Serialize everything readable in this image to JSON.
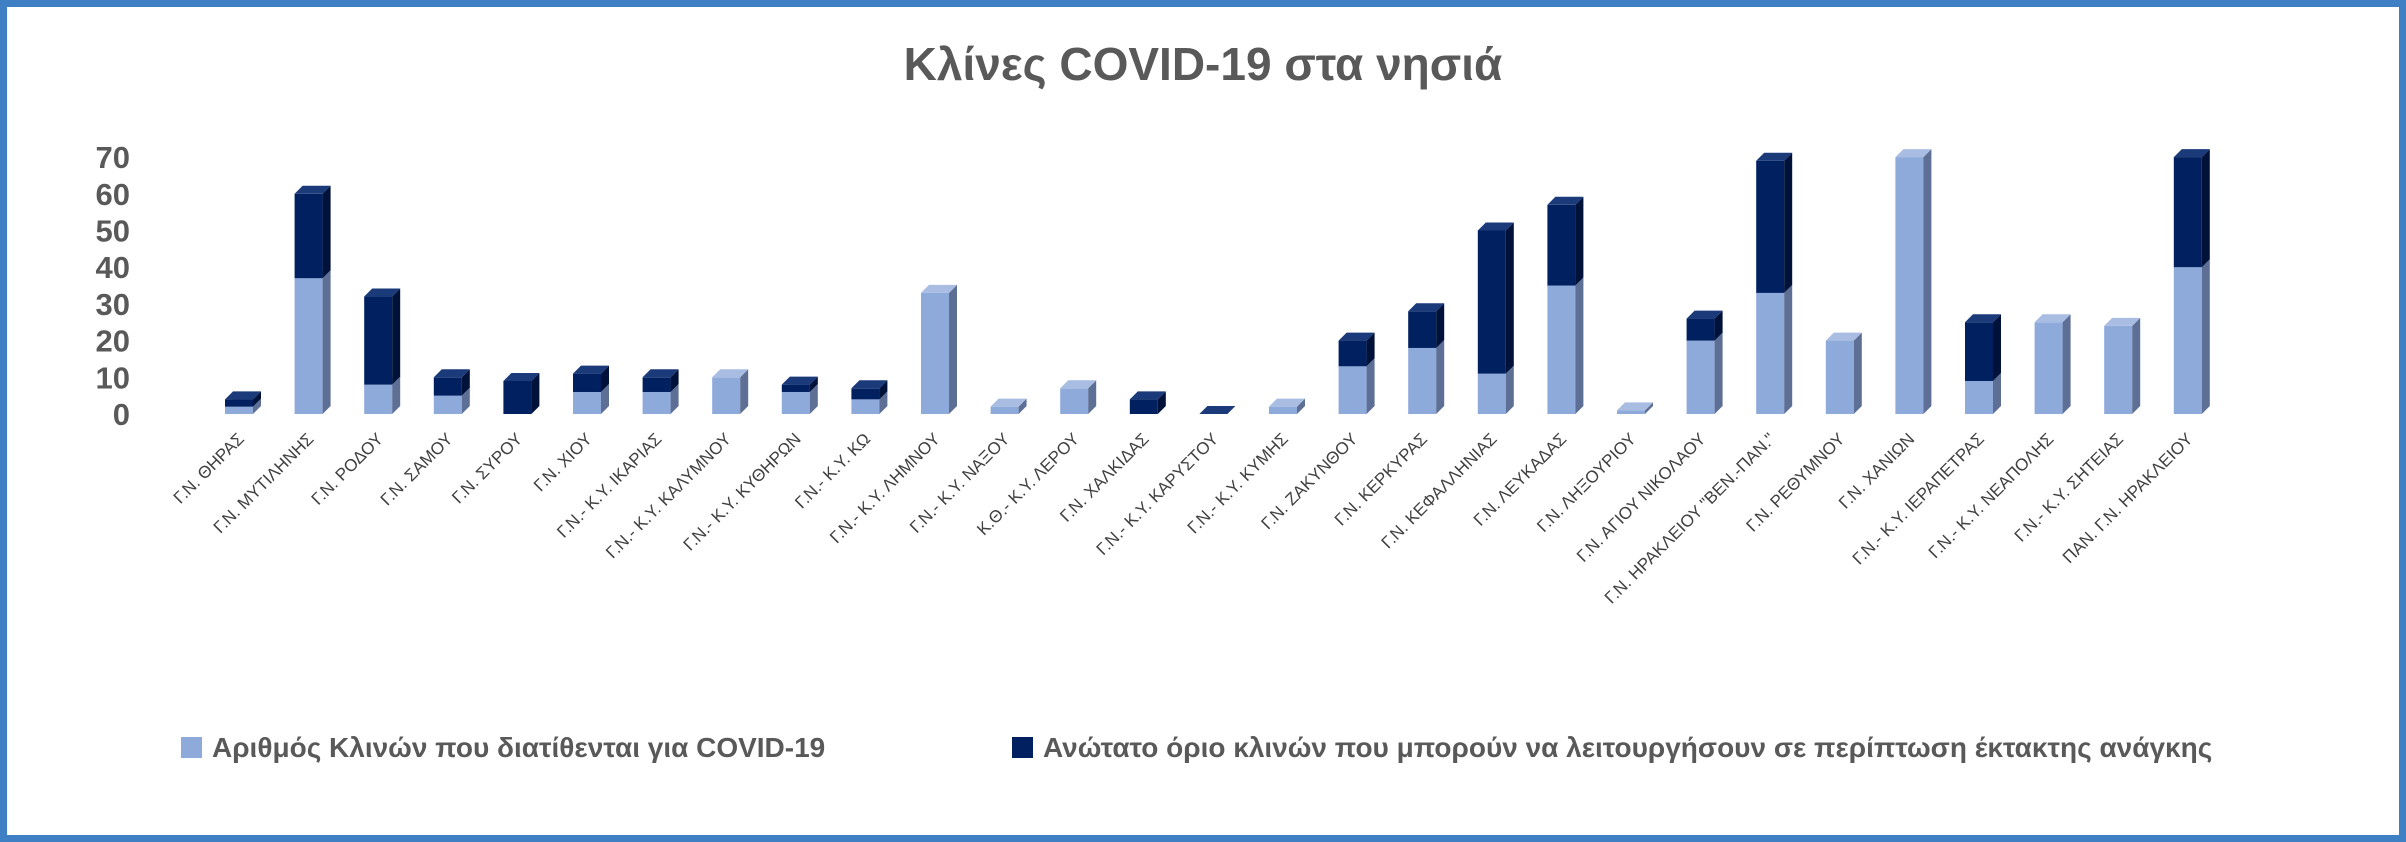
{
  "chart_data": {
    "type": "bar",
    "stacked": true,
    "style": "3d-column",
    "title": "Κλίνες  COVID-19 στα νησιά",
    "ylim": [
      0,
      70
    ],
    "yticks": [
      0,
      10,
      20,
      30,
      40,
      50,
      60,
      70
    ],
    "grid": false,
    "legend_position": "bottom",
    "categories": [
      "Γ.Ν. ΘΗΡΑΣ",
      "Γ.Ν. ΜΥΤΙΛΗΝΗΣ",
      "Γ.Ν. ΡΟΔΟΥ",
      "Γ.Ν. ΣΑΜΟΥ",
      "Γ.Ν. ΣΥΡΟΥ",
      "Γ.Ν. ΧΙΟΥ",
      "Γ.Ν.- Κ.Υ. ΙΚΑΡΙΑΣ",
      "Γ.Ν.- Κ.Υ. ΚΑΛΥΜΝΟΥ",
      "Γ.Ν.- Κ.Υ. ΚΥΘΗΡΩΝ",
      "Γ.Ν.- Κ.Υ. ΚΩ",
      "Γ.Ν.- Κ.Υ. ΛΗΜΝΟΥ",
      "Γ.Ν.- Κ.Υ. ΝΑΞΟΥ",
      "Κ.Θ.- Κ.Υ. ΛΕΡΟΥ",
      "Γ.Ν. ΧΑΛΚΙΔΑΣ",
      "Γ.Ν.- Κ.Υ. ΚΑΡΥΣΤΟΥ",
      "Γ.Ν.- Κ.Υ. ΚΥΜΗΣ",
      "Γ.Ν. ΖΑΚΥΝΘΟΥ",
      "Γ.Ν. ΚΕΡΚΥΡΑΣ",
      "Γ.Ν. ΚΕΦΑΛΛΗΝΙΑΣ",
      "Γ.Ν. ΛΕΥΚΑΔΑΣ",
      "Γ.Ν. ΛΗΞΟΥΡΙΟΥ",
      "Γ.Ν. ΑΓΙΟΥ ΝΙΚΟΛΑΟΥ",
      "Γ.Ν. ΗΡΑΚΛΕΙΟΥ \"ΒΕΝ.-ΠΑΝ.\"",
      "Γ.Ν. ΡΕΘΥΜΝΟΥ",
      "Γ.Ν. ΧΑΝΙΩΝ",
      "Γ.Ν.- Κ.Υ. ΙΕΡΑΠΕΤΡΑΣ",
      "Γ.Ν.- Κ.Υ. ΝΕΑΠΟΛΗΣ",
      "Γ.Ν.- Κ.Υ. ΣΗΤΕΙΑΣ",
      "ΠΑΝ. Γ.Ν. ΗΡΑΚΛΕΙΟΥ"
    ],
    "series": [
      {
        "name": "Αριθμός Κλινών  που διατίθενται για COVID-19",
        "color": "#8eaadb",
        "values": [
          2,
          37,
          8,
          5,
          0,
          6,
          6,
          10,
          6,
          4,
          33,
          2,
          7,
          0,
          0,
          2,
          13,
          18,
          11,
          35,
          1,
          20,
          33,
          20,
          70,
          9,
          25,
          24,
          40
        ]
      },
      {
        "name": "Ανώτατο όριο κλινών που μπορούν να λειτουργήσουν σε περίπτωση έκτακτης ανάγκης",
        "color": "#002060",
        "values": [
          2,
          23,
          24,
          5,
          9,
          5,
          4,
          0,
          2,
          3,
          0,
          0,
          0,
          4,
          0,
          0,
          7,
          10,
          39,
          22,
          0,
          6,
          36,
          0,
          0,
          16,
          0,
          0,
          30
        ]
      }
    ]
  }
}
